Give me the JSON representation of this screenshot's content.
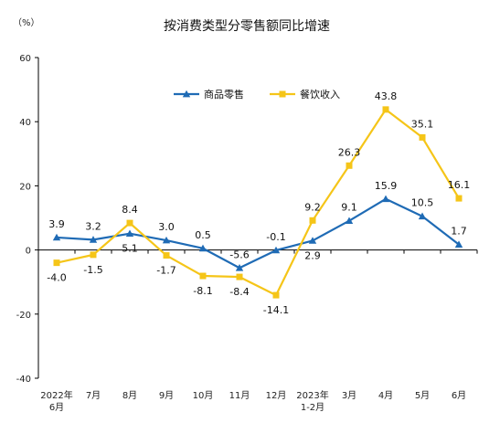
{
  "chart_data": {
    "type": "line",
    "title": "按消费类型分零售额同比增速",
    "ylabel": "（%）",
    "ylim": [
      -40,
      60
    ],
    "yticks": [
      -40,
      -20,
      0,
      20,
      40,
      60
    ],
    "grid": false,
    "legend_position": "top-center",
    "categories": [
      {
        "line1": "2022年",
        "line2": "6月"
      },
      {
        "line1": "7月",
        "line2": ""
      },
      {
        "line1": "8月",
        "line2": ""
      },
      {
        "line1": "9月",
        "line2": ""
      },
      {
        "line1": "10月",
        "line2": ""
      },
      {
        "line1": "11月",
        "line2": ""
      },
      {
        "line1": "12月",
        "line2": ""
      },
      {
        "line1": "2023年",
        "line2": "1-2月"
      },
      {
        "line1": "3月",
        "line2": ""
      },
      {
        "line1": "4月",
        "line2": ""
      },
      {
        "line1": "5月",
        "line2": ""
      },
      {
        "line1": "6月",
        "line2": ""
      }
    ],
    "series": [
      {
        "name": "商品零售",
        "color": "#1f6bb5",
        "marker": "triangle",
        "values": [
          3.9,
          3.2,
          5.1,
          3.0,
          0.5,
          -5.6,
          -0.1,
          2.9,
          9.1,
          15.9,
          10.5,
          1.7
        ],
        "labels": [
          "3.9",
          "3.2",
          "5.1",
          "3.0",
          "0.5",
          "-5.6",
          "-0.1",
          "2.9",
          "9.1",
          "15.9",
          "10.5",
          "1.7"
        ],
        "label_pos": [
          "above",
          "above",
          "below",
          "above",
          "above",
          "above",
          "above",
          "below",
          "above",
          "above",
          "above",
          "above"
        ]
      },
      {
        "name": "餐饮收入",
        "color": "#f5c518",
        "marker": "square",
        "values": [
          -4.0,
          -1.5,
          8.4,
          -1.7,
          -8.1,
          -8.4,
          -14.1,
          9.2,
          26.3,
          43.8,
          35.1,
          16.1
        ],
        "labels": [
          "-4.0",
          "-1.5",
          "8.4",
          "-1.7",
          "-8.1",
          "-8.4",
          "-14.1",
          "9.2",
          "26.3",
          "43.8",
          "35.1",
          "16.1"
        ],
        "label_pos": [
          "below",
          "below",
          "above",
          "below",
          "below",
          "below",
          "below",
          "above",
          "above",
          "above",
          "above",
          "above"
        ]
      }
    ]
  }
}
